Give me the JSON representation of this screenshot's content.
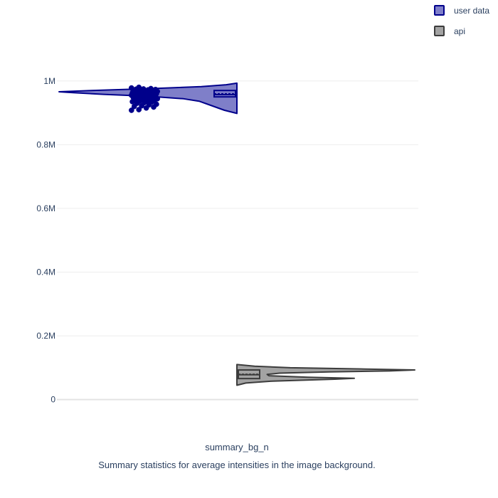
{
  "chart_data": {
    "type": "violin",
    "title": "",
    "xlabel": "summary_bg_n",
    "ylabel": "",
    "caption": "Summary statistics for average intensities in the image background.",
    "category": "summary_bg_n",
    "ylim": [
      -90000,
      1120000
    ],
    "yticks": [
      {
        "value": 0,
        "label": "0"
      },
      {
        "value": 200000,
        "label": "0.2M"
      },
      {
        "value": 400000,
        "label": "0.4M"
      },
      {
        "value": 600000,
        "label": "0.6M"
      },
      {
        "value": 800000,
        "label": "0.8M"
      },
      {
        "value": 1000000,
        "label": "1M"
      }
    ],
    "grid": true,
    "legend_position": "top-right",
    "series": [
      {
        "name": "user data",
        "side": "negative",
        "fill_color": "#7f7fc9",
        "line_color": "#00008b",
        "stats": {
          "min": 898000,
          "q1": 950000,
          "median": 957000,
          "mean": 960000,
          "q3": 970000,
          "max": 993000
        },
        "density": [
          {
            "y": 898000,
            "w": 0.0
          },
          {
            "y": 908000,
            "w": 0.07
          },
          {
            "y": 918000,
            "w": 0.12
          },
          {
            "y": 928000,
            "w": 0.17
          },
          {
            "y": 936000,
            "w": 0.21
          },
          {
            "y": 944000,
            "w": 0.3
          },
          {
            "y": 952000,
            "w": 0.5
          },
          {
            "y": 958000,
            "w": 0.75
          },
          {
            "y": 963000,
            "w": 0.92
          },
          {
            "y": 966000,
            "w": 1.0
          },
          {
            "y": 970000,
            "w": 0.82
          },
          {
            "y": 976000,
            "w": 0.48
          },
          {
            "y": 982000,
            "w": 0.2
          },
          {
            "y": 988000,
            "w": 0.06
          },
          {
            "y": 993000,
            "w": 0.0
          }
        ],
        "points": [
          908000,
          910000,
          915000,
          918000,
          920000,
          922000,
          925000,
          927000,
          930000,
          932000,
          934000,
          935000,
          937000,
          938000,
          940000,
          941000,
          942000,
          943000,
          944000,
          945000,
          946000,
          947000,
          948000,
          949000,
          950000,
          951000,
          952000,
          953000,
          954000,
          955000,
          956000,
          956500,
          957000,
          957500,
          958000,
          959000,
          960000,
          960500,
          961000,
          962000,
          962500,
          963000,
          964000,
          964500,
          965000,
          966000,
          966500,
          967000,
          968000,
          968500,
          969000,
          970000,
          971000,
          972000,
          973000,
          974000,
          975000,
          976000,
          978000,
          980000
        ]
      },
      {
        "name": "api",
        "side": "positive",
        "fill_color": "#a3a3a3",
        "line_color": "#3c3c3c",
        "stats": {
          "min": 45000,
          "q1": 66000,
          "median": 78000,
          "mean": 80000,
          "q3": 93000,
          "max": 110000
        },
        "density": [
          {
            "y": 45000,
            "w": 0.0
          },
          {
            "y": 52000,
            "w": 0.05
          },
          {
            "y": 58000,
            "w": 0.2
          },
          {
            "y": 64000,
            "w": 0.55
          },
          {
            "y": 67000,
            "w": 0.66
          },
          {
            "y": 70000,
            "w": 0.4
          },
          {
            "y": 75000,
            "w": 0.18
          },
          {
            "y": 79000,
            "w": 0.17
          },
          {
            "y": 83000,
            "w": 0.24
          },
          {
            "y": 87000,
            "w": 0.52
          },
          {
            "y": 90000,
            "w": 0.86
          },
          {
            "y": 93000,
            "w": 1.0
          },
          {
            "y": 96000,
            "w": 0.72
          },
          {
            "y": 100000,
            "w": 0.3
          },
          {
            "y": 105000,
            "w": 0.1
          },
          {
            "y": 110000,
            "w": 0.0
          }
        ],
        "points": []
      }
    ]
  }
}
